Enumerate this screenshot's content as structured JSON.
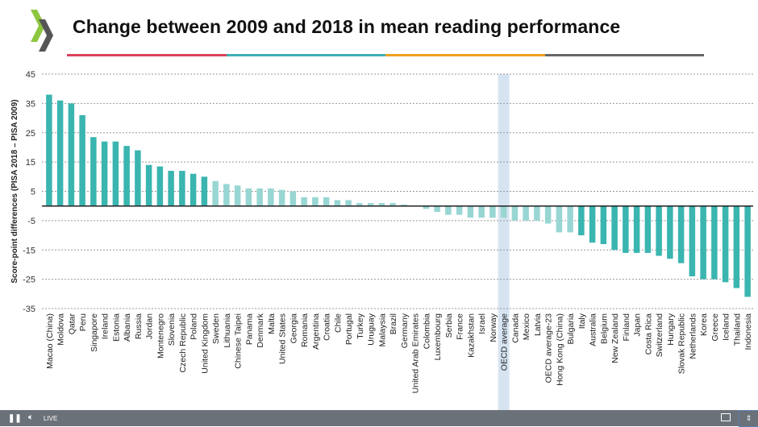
{
  "header": {
    "title": "Change between 2009 and 2018 in mean reading performance",
    "rule_colors": [
      "#d9435a",
      "#3fb0b5",
      "#f0a020",
      "#666666"
    ],
    "logo": "OECD"
  },
  "chart_data": {
    "type": "bar",
    "title": "Change between 2009 and 2018 in mean reading performance",
    "ylabel": "Score-point differences (PISA 2018 – PISA 2009)",
    "xlabel": "",
    "ylim": [
      -35,
      45
    ],
    "yticks": [
      45,
      35,
      25,
      15,
      5,
      -5,
      -15,
      -25,
      -35
    ],
    "grid": true,
    "categories": [
      "Macao (China)",
      "Moldova",
      "Qatar",
      "Peru",
      "Singapore",
      "Ireland",
      "Estonia",
      "Albania",
      "Russia",
      "Jordan",
      "Montenegro",
      "Slovenia",
      "Czech Republic",
      "Poland",
      "United Kingdom",
      "Sweden",
      "Lithuania",
      "Chinese Taipei",
      "Panama",
      "Denmark",
      "Malta",
      "United States",
      "Georgia",
      "Romania",
      "Argentina",
      "Croatia",
      "Chile",
      "Portugal",
      "Turkey",
      "Uruguay",
      "Malaysia",
      "Brazil",
      "Germany",
      "United Arab Emirates",
      "Colombia",
      "Luxembourg",
      "Serbia",
      "France",
      "Kazakhstan",
      "Israel",
      "Norway",
      "OECD average",
      "Canada",
      "Mexico",
      "Latvia",
      "OECD average-23",
      "Hong Kong (China)",
      "Bulgaria",
      "Italy",
      "Australia",
      "Belgium",
      "New Zealand",
      "Finland",
      "Japan",
      "Costa Rica",
      "Switzerland",
      "Hungary",
      "Slovak Republic",
      "Netherlands",
      "Korea",
      "Greece",
      "Iceland",
      "Thailand",
      "Indonesia"
    ],
    "values": [
      38,
      36,
      35,
      31,
      23.5,
      22,
      22,
      20.5,
      19,
      14,
      13.5,
      12,
      12,
      11,
      10,
      8.5,
      7.5,
      7,
      6,
      6,
      6,
      5.5,
      5,
      3,
      3,
      3,
      2,
      2,
      1,
      1,
      1,
      1,
      0.5,
      0,
      -1,
      -2,
      -3,
      -3,
      -4,
      -4,
      -4,
      -4,
      -5,
      -5,
      -5,
      -6,
      -9,
      -9,
      -10,
      -12.5,
      -13,
      -15,
      -16,
      -16,
      -16,
      -17,
      -18,
      -19.5,
      -24,
      -25,
      -25,
      -26,
      -28,
      -31
    ],
    "significant": [
      1,
      1,
      1,
      1,
      1,
      1,
      1,
      1,
      1,
      1,
      1,
      1,
      1,
      1,
      1,
      0,
      0,
      0,
      0,
      0,
      0,
      0,
      0,
      0,
      0,
      0,
      0,
      0,
      0,
      0,
      0,
      0,
      0,
      0,
      0,
      0,
      0,
      0,
      0,
      0,
      0,
      0,
      0,
      0,
      0,
      0,
      0,
      0,
      1,
      1,
      1,
      1,
      1,
      1,
      1,
      1,
      1,
      1,
      1,
      1,
      1,
      1,
      1,
      1
    ],
    "highlight": "OECD average",
    "colors": {
      "significant": "#3ab5b0",
      "not_significant": "#98d6d3",
      "highlight_band": "#d6e4f2"
    }
  },
  "player": {
    "live_label": "LIVE",
    "icons": [
      "pause-icon",
      "volume-icon",
      "pip-icon",
      "exit-fullscreen-icon"
    ]
  }
}
